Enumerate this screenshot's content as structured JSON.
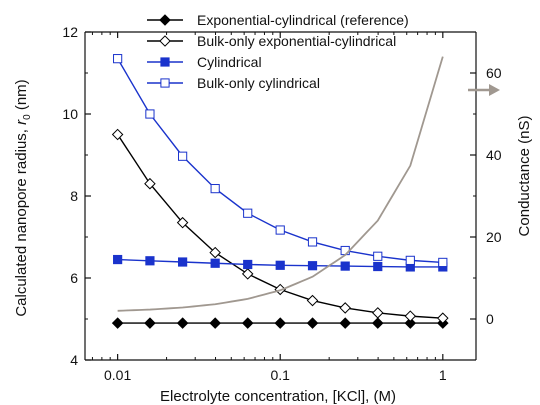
{
  "chart_data": {
    "type": "scatter",
    "x_scale": "log",
    "xlabel": "Electrolyte concentration, [KCl], (M)",
    "ylabel_left": "Calculated nanopore radius, r0 (nm)",
    "ylabel_left_text": "Calculated nanopore radius, ",
    "ylabel_left_var": "r",
    "ylabel_left_sub": "0",
    "ylabel_left_unit": " (nm)",
    "ylabel_right": "Conductance (nS)",
    "xlim": [
      0.0063,
      1.6
    ],
    "ylim_left": [
      4,
      12
    ],
    "ylim_right": [
      -10,
      70
    ],
    "x_ticks": [
      {
        "v": 0.01,
        "label": "0.01"
      },
      {
        "v": 0.1,
        "label": "0.1"
      },
      {
        "v": 1,
        "label": "1"
      }
    ],
    "y_left_ticks": [
      {
        "v": 4,
        "label": "4"
      },
      {
        "v": 6,
        "label": "6"
      },
      {
        "v": 8,
        "label": "8"
      },
      {
        "v": 10,
        "label": "10"
      },
      {
        "v": 12,
        "label": "12"
      }
    ],
    "y_right_ticks": [
      {
        "v": 0,
        "label": "0"
      },
      {
        "v": 20,
        "label": "20"
      },
      {
        "v": 40,
        "label": "40"
      },
      {
        "v": 60,
        "label": "60"
      }
    ],
    "x": [
      0.01,
      0.0158,
      0.0251,
      0.0398,
      0.0631,
      0.1,
      0.158,
      0.251,
      0.398,
      0.631,
      1.0
    ],
    "series": [
      {
        "name": "Exponential-cylindrical (reference)",
        "marker": "filled-diamond",
        "color": "#000000",
        "axis": "left",
        "values": [
          4.9,
          4.9,
          4.9,
          4.9,
          4.9,
          4.9,
          4.9,
          4.9,
          4.9,
          4.9,
          4.9
        ]
      },
      {
        "name": "Bulk-only exponential-cylindrical",
        "marker": "open-diamond",
        "color": "#000000",
        "axis": "left",
        "values": [
          9.5,
          8.3,
          7.35,
          6.62,
          6.1,
          5.72,
          5.45,
          5.27,
          5.15,
          5.07,
          5.02
        ]
      },
      {
        "name": "Cylindrical",
        "marker": "filled-square",
        "color": "#1a33cc",
        "axis": "left",
        "values": [
          6.45,
          6.42,
          6.39,
          6.36,
          6.33,
          6.31,
          6.3,
          6.29,
          6.28,
          6.27,
          6.27
        ]
      },
      {
        "name": "Bulk-only cylindrical",
        "marker": "open-square",
        "color": "#1a33cc",
        "axis": "left",
        "values": [
          11.35,
          10.0,
          8.97,
          8.18,
          7.58,
          7.17,
          6.88,
          6.67,
          6.53,
          6.43,
          6.38
        ]
      },
      {
        "name": "",
        "marker": "none",
        "color": "#a09890",
        "axis": "right",
        "curve_x": [
          0.01,
          0.0158,
          0.0251,
          0.0398,
          0.0631,
          0.1,
          0.158,
          0.251,
          0.398,
          0.631,
          1.0
        ],
        "curve_values": [
          2.0,
          2.3,
          2.8,
          3.6,
          4.9,
          7.0,
          10.3,
          15.6,
          24.0,
          37.4,
          64.0
        ]
      }
    ],
    "colors": {
      "axis": "#111111",
      "blue": "#1a33cc",
      "black": "#000000",
      "gray_curve": "#a09890",
      "arrow": "#a09890"
    },
    "legend_placement": "top-center",
    "grid": false,
    "annotation": "arrow pointing to the right axis"
  }
}
